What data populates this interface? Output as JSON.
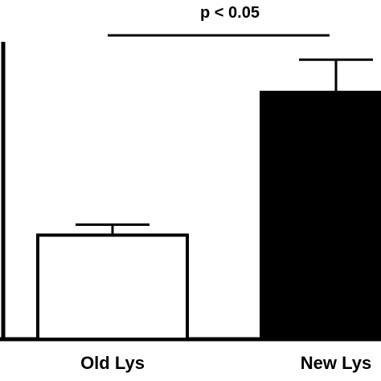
{
  "chart_data": {
    "type": "bar",
    "categories": [
      "Old Lys",
      "New Lys"
    ],
    "values": [
      35,
      83
    ],
    "errors": [
      3.5,
      11
    ],
    "ylim": [
      0,
      100
    ],
    "title": "",
    "xlabel": "",
    "ylabel": "",
    "grid": false,
    "bar_fills": [
      "#ffffff",
      "#000000"
    ],
    "bar_stroke": "#000000",
    "significance": {
      "label": "p < 0.05",
      "between": [
        0,
        1
      ]
    }
  }
}
